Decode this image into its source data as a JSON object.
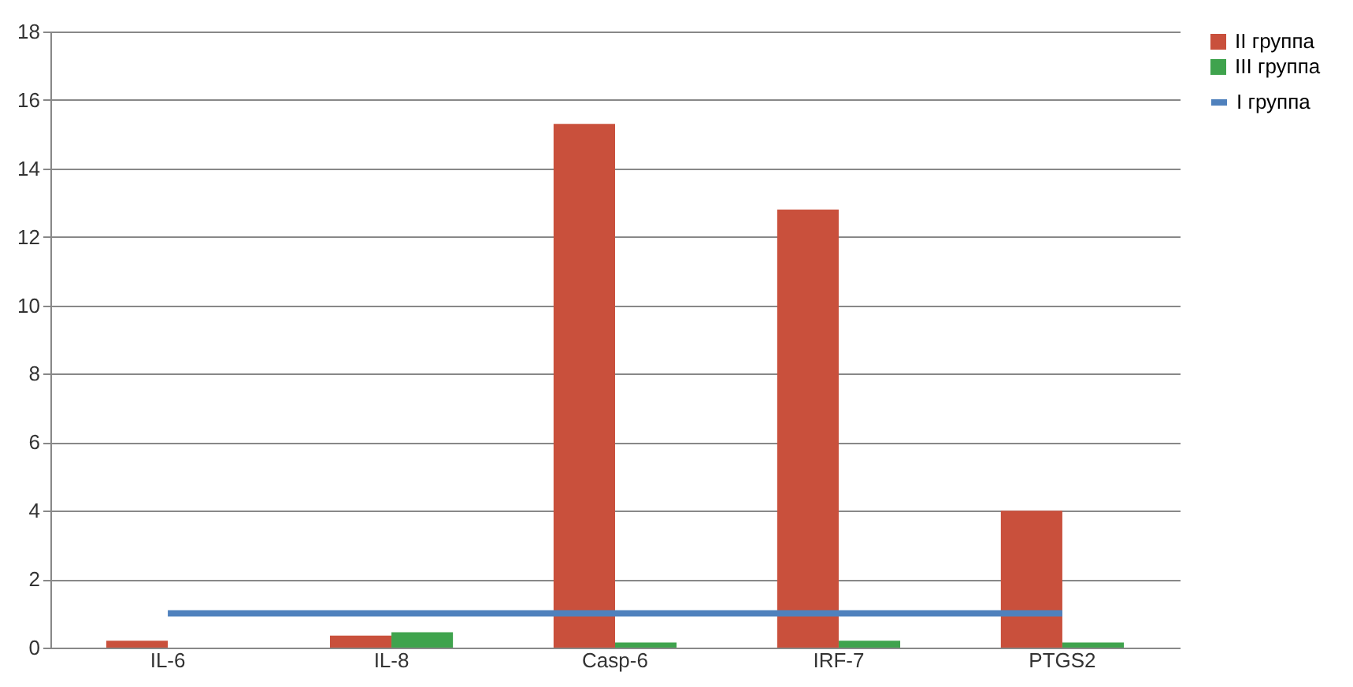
{
  "chart_data": {
    "type": "bar",
    "categories": [
      "IL-6",
      "IL-8",
      "Casp-6",
      "IRF-7",
      "PTGS2"
    ],
    "series": [
      {
        "name": "II группа",
        "color": "#c9503c",
        "values": [
          0.2,
          0.35,
          15.3,
          12.8,
          4.0
        ]
      },
      {
        "name": "III группа",
        "color": "#3fa34d",
        "values": [
          0,
          0.45,
          0.15,
          0.2,
          0.15
        ]
      },
      {
        "name": "I группа",
        "type": "line",
        "color": "#4f81bd",
        "values": [
          1,
          1,
          1,
          1,
          1
        ]
      }
    ],
    "ylim": [
      0,
      18
    ],
    "yticks": [
      0,
      2,
      4,
      6,
      8,
      10,
      12,
      14,
      16,
      18
    ],
    "grid": "y",
    "legend": "right"
  }
}
